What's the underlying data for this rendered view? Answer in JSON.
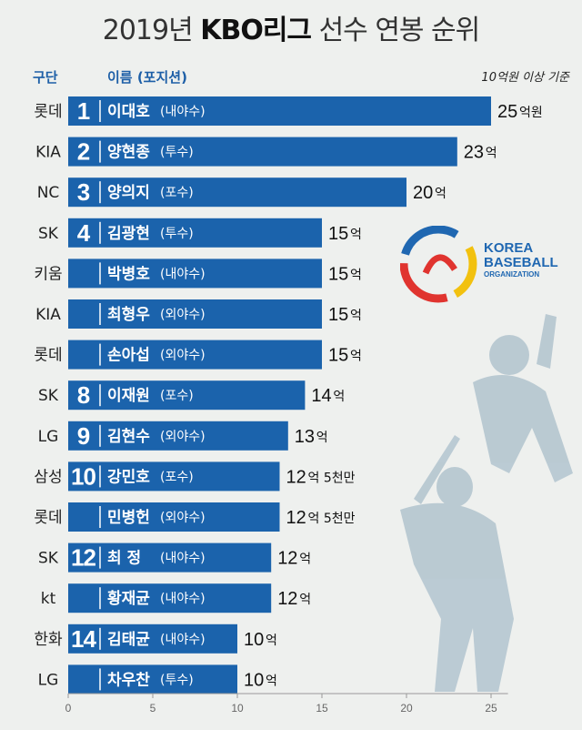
{
  "title": {
    "prefix": "2019년 ",
    "bold": "KBO리그",
    "suffix": " 선수 연봉 순위"
  },
  "header": {
    "team_col": "구단",
    "name_col": "이름 (포지션)",
    "note": "10억원 이상 기준"
  },
  "logo": {
    "line1": "KOREA",
    "line2": "BASEBALL",
    "line3": "ORGANIZATION"
  },
  "colors": {
    "bar": "#1b63ac",
    "bar_dark": "#15558f",
    "rank_divider": "#ffffff",
    "silhouette": "#b5c6d0"
  },
  "chart_data": {
    "type": "bar",
    "orientation": "horizontal",
    "xlim": [
      0,
      27
    ],
    "x_ticks": [
      0,
      5,
      10,
      15,
      20,
      25
    ],
    "rows": [
      {
        "team": "롯데",
        "rank": "1",
        "name": "이대호",
        "pos": "(내야수)",
        "value": 25,
        "amount": "25",
        "unit": "억원"
      },
      {
        "team": "KIA",
        "rank": "2",
        "name": "양현종",
        "pos": "(투수)",
        "value": 23,
        "amount": "23",
        "unit": "억"
      },
      {
        "team": "NC",
        "rank": "3",
        "name": "양의지",
        "pos": "(포수)",
        "value": 20,
        "amount": "20",
        "unit": "억"
      },
      {
        "team": "SK",
        "rank": "4",
        "name": "김광현",
        "pos": "(투수)",
        "value": 15,
        "amount": "15",
        "unit": "억"
      },
      {
        "team": "키움",
        "rank": "",
        "name": "박병호",
        "pos": "(내야수)",
        "value": 15,
        "amount": "15",
        "unit": "억"
      },
      {
        "team": "KIA",
        "rank": "",
        "name": "최형우",
        "pos": "(외야수)",
        "value": 15,
        "amount": "15",
        "unit": "억"
      },
      {
        "team": "롯데",
        "rank": "",
        "name": "손아섭",
        "pos": "(외야수)",
        "value": 15,
        "amount": "15",
        "unit": "억"
      },
      {
        "team": "SK",
        "rank": "8",
        "name": "이재원",
        "pos": "(포수)",
        "value": 14,
        "amount": "14",
        "unit": "억"
      },
      {
        "team": "LG",
        "rank": "9",
        "name": "김현수",
        "pos": "(외야수)",
        "value": 13,
        "amount": "13",
        "unit": "억"
      },
      {
        "team": "삼성",
        "rank": "10",
        "name": "강민호",
        "pos": "(포수)",
        "value": 12.5,
        "amount": "12",
        "unit": "억 5천만"
      },
      {
        "team": "롯데",
        "rank": "",
        "name": "민병헌",
        "pos": "(외야수)",
        "value": 12.5,
        "amount": "12",
        "unit": "억 5천만"
      },
      {
        "team": "SK",
        "rank": "12",
        "name": "최 정",
        "pos": "(내야수)",
        "value": 12,
        "amount": "12",
        "unit": "억"
      },
      {
        "team": "kt",
        "rank": "",
        "name": "황재균",
        "pos": "(내야수)",
        "value": 12,
        "amount": "12",
        "unit": "억"
      },
      {
        "team": "한화",
        "rank": "14",
        "name": "김태균",
        "pos": "(내야수)",
        "value": 10,
        "amount": "10",
        "unit": "억"
      },
      {
        "team": "LG",
        "rank": "",
        "name": "차우찬",
        "pos": "(투수)",
        "value": 10,
        "amount": "10",
        "unit": "억"
      }
    ]
  }
}
